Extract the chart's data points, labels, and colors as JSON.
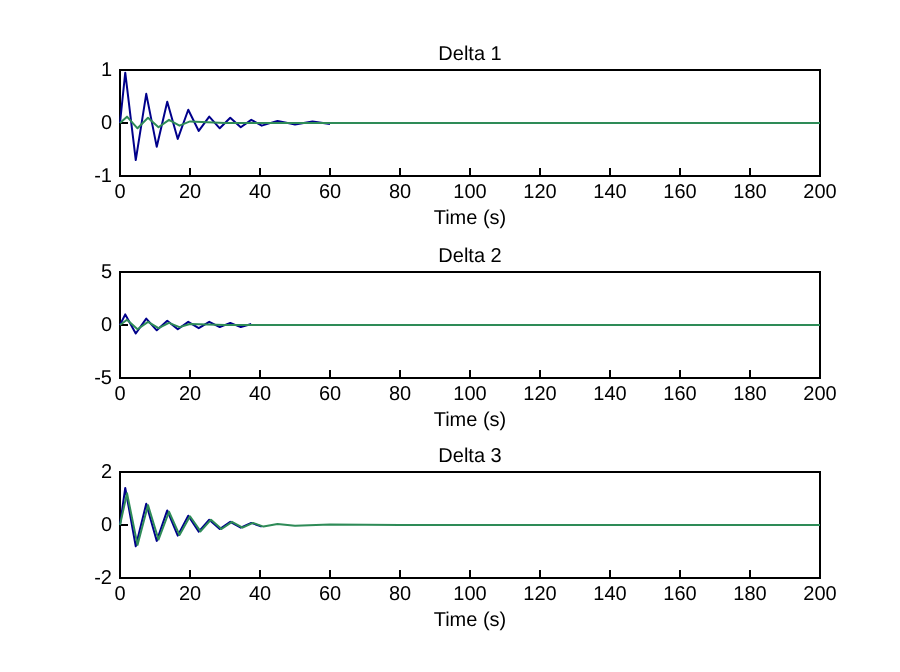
{
  "chart_data": [
    {
      "type": "line",
      "title": "Delta 1",
      "xlabel": "Time (s)",
      "xlim": [
        0,
        200
      ],
      "xticks": [
        0,
        20,
        40,
        60,
        80,
        100,
        120,
        140,
        160,
        180,
        200
      ],
      "ylim": [
        -1,
        1
      ],
      "yticks": [
        -1,
        0,
        1
      ],
      "grid": false,
      "series": [
        {
          "color": "#00008b",
          "x": [
            0,
            1.5,
            4.5,
            7.5,
            10.5,
            13.5,
            16.5,
            19.5,
            22.5,
            25.5,
            28.5,
            31.5,
            34.5,
            37.5,
            40.5,
            45,
            50,
            55,
            60
          ],
          "values": [
            0,
            0.95,
            -0.7,
            0.55,
            -0.45,
            0.4,
            -0.3,
            0.25,
            -0.15,
            0.12,
            -0.1,
            0.1,
            -0.08,
            0.06,
            -0.05,
            0.04,
            -0.03,
            0.03,
            -0.02
          ]
        },
        {
          "color": "#2e8b57",
          "x": [
            0,
            2,
            5,
            8,
            11,
            14,
            17,
            20,
            30,
            40,
            200
          ],
          "values": [
            0,
            0.12,
            -0.1,
            0.1,
            -0.08,
            0.06,
            -0.05,
            0.03,
            0,
            0,
            0
          ]
        }
      ]
    },
    {
      "type": "line",
      "title": "Delta 2",
      "xlabel": "Time (s)",
      "xlim": [
        0,
        200
      ],
      "xticks": [
        0,
        20,
        40,
        60,
        80,
        100,
        120,
        140,
        160,
        180,
        200
      ],
      "ylim": [
        -5,
        5
      ],
      "yticks": [
        -5,
        0,
        5
      ],
      "grid": false,
      "series": [
        {
          "color": "#00008b",
          "x": [
            0,
            1.5,
            4.5,
            7.5,
            10.5,
            13.5,
            16.5,
            19.5,
            22.5,
            25.5,
            28.5,
            31.5,
            34.5,
            37.5
          ],
          "values": [
            0,
            1,
            -0.8,
            0.6,
            -0.5,
            0.4,
            -0.4,
            0.3,
            -0.3,
            0.3,
            -0.2,
            0.2,
            -0.2,
            0.1
          ]
        },
        {
          "color": "#2e8b57",
          "x": [
            0,
            2,
            5,
            8,
            11,
            14,
            17,
            20,
            30,
            40,
            200
          ],
          "values": [
            0,
            0.5,
            -0.4,
            0.3,
            -0.3,
            0.2,
            -0.2,
            0.1,
            0,
            0,
            0
          ]
        }
      ]
    },
    {
      "type": "line",
      "title": "Delta 3",
      "xlabel": "Time (s)",
      "xlim": [
        0,
        200
      ],
      "xticks": [
        0,
        20,
        40,
        60,
        80,
        100,
        120,
        140,
        160,
        180,
        200
      ],
      "ylim": [
        -2,
        2
      ],
      "yticks": [
        -2,
        0,
        2
      ],
      "grid": false,
      "series": [
        {
          "color": "#00008b",
          "x": [
            0,
            1.5,
            4.5,
            7.5,
            10.5,
            13.5,
            16.5,
            19.5,
            22.5,
            25.5,
            28.5,
            31.5,
            34.5,
            37.5,
            40.5
          ],
          "values": [
            0,
            1.4,
            -0.8,
            0.8,
            -0.6,
            0.55,
            -0.4,
            0.35,
            -0.25,
            0.2,
            -0.15,
            0.12,
            -0.1,
            0.08,
            -0.06
          ]
        },
        {
          "color": "#2e8b57",
          "x": [
            0,
            2,
            5,
            8,
            11,
            14,
            17,
            20,
            23,
            26,
            29,
            32,
            35,
            38,
            41,
            45,
            50,
            60,
            80,
            120,
            180,
            200
          ],
          "values": [
            0,
            1.2,
            -0.75,
            0.75,
            -0.55,
            0.5,
            -0.38,
            0.33,
            -0.24,
            0.2,
            -0.15,
            0.12,
            -0.1,
            0.08,
            -0.06,
            0.04,
            -0.03,
            0.02,
            0,
            0,
            0,
            0
          ]
        }
      ]
    }
  ]
}
